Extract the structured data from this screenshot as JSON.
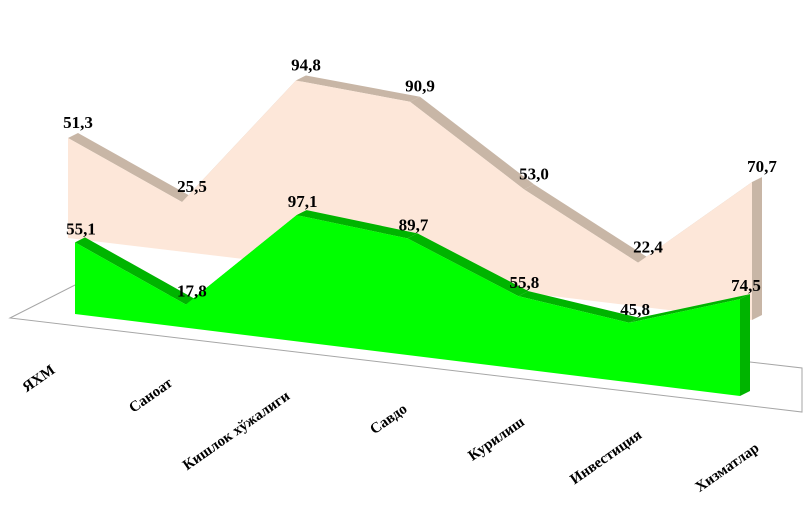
{
  "chart_data": {
    "type": "area",
    "categories": [
      "ЯХМ",
      "Саноат",
      "Кишлок хўжалиги",
      "Савдо",
      "Курилиш",
      "Инвестиция",
      "Хизматлар"
    ],
    "series": [
      {
        "values": [
          51.3,
          25.5,
          94.8,
          90.9,
          53.0,
          22.4,
          70.7
        ],
        "labels": [
          "51,3",
          "25,5",
          "94,8",
          "90,9",
          "53,0",
          "22,4",
          "70,7"
        ],
        "color": "#fde7d9",
        "side_color": "#c8b6a6"
      },
      {
        "values": [
          55.1,
          17.8,
          97.1,
          89.7,
          55.8,
          45.8,
          74.5
        ],
        "labels": [
          "55,1",
          "17,8",
          "97,1",
          "89,7",
          "55,8",
          "45,8",
          "74,5"
        ],
        "color": "#00ff00",
        "side_color": "#00b400"
      }
    ],
    "style": "3d-area",
    "legend": "none",
    "grid": false,
    "xlabel": "",
    "ylabel": ""
  }
}
